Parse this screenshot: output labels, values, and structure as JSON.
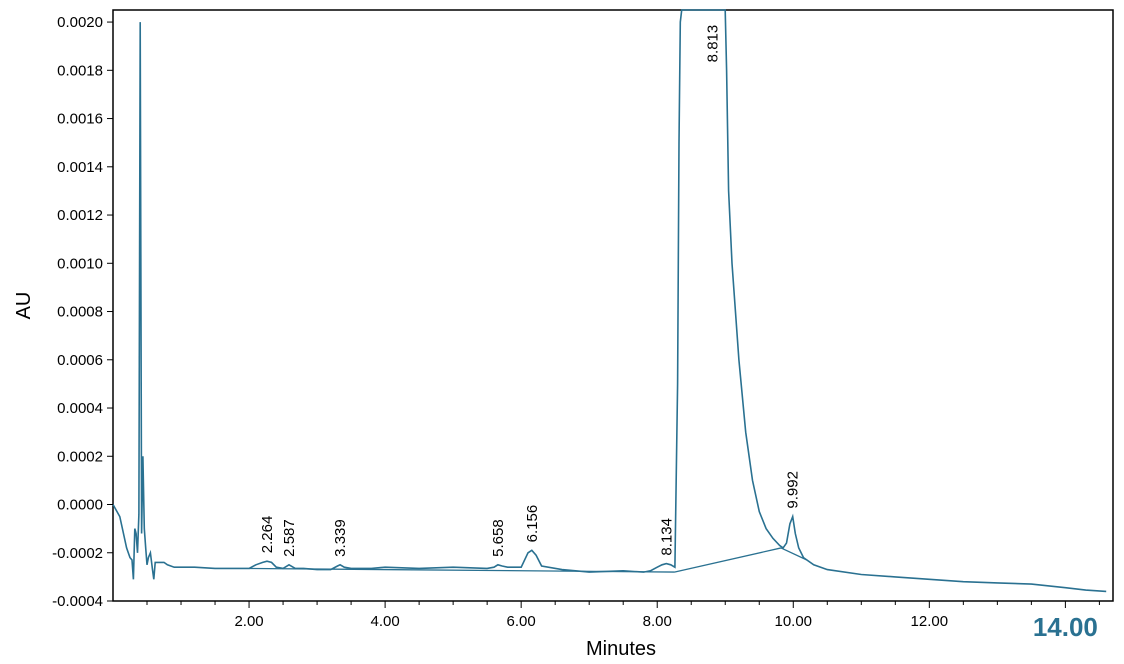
{
  "chart_data": {
    "type": "line",
    "title": "",
    "xlabel": "Minutes",
    "ylabel": "AU",
    "xlim": [
      0.0,
      14.7
    ],
    "ylim": [
      -0.0004,
      0.00205
    ],
    "x_ticks": [
      2.0,
      4.0,
      6.0,
      8.0,
      10.0,
      12.0
    ],
    "x_tick_labels": [
      "2.00",
      "4.00",
      "6.00",
      "8.00",
      "10.00",
      "12.00"
    ],
    "x_max_label": "14.00",
    "y_ticks": [
      -0.0004,
      -0.0002,
      0.0,
      0.0002,
      0.0004,
      0.0006,
      0.0008,
      0.001,
      0.0012,
      0.0014,
      0.0016,
      0.0018,
      0.002
    ],
    "y_tick_labels": [
      "-0.0004",
      "-0.0002",
      "0.0000",
      "0.0002",
      "0.0004",
      "0.0006",
      "0.0008",
      "0.0010",
      "0.0012",
      "0.0014",
      "0.0016",
      "0.0018",
      "0.0020"
    ],
    "grid": false,
    "line_color": "#2a7191",
    "series": [
      {
        "x": [
          0.0,
          0.1,
          0.2,
          0.25,
          0.28,
          0.3,
          0.32,
          0.34,
          0.36,
          0.38,
          0.4,
          0.42,
          0.44,
          0.46,
          0.48,
          0.5,
          0.52,
          0.55,
          0.58,
          0.6,
          0.62,
          0.65,
          0.7,
          0.75,
          0.8,
          0.9,
          1.0,
          1.2,
          1.5,
          1.8,
          2.0,
          2.1,
          2.2,
          2.264,
          2.33,
          2.4,
          2.5,
          2.587,
          2.68,
          2.8,
          3.0,
          3.2,
          3.3,
          3.339,
          3.4,
          3.5,
          3.8,
          4.0,
          4.5,
          5.0,
          5.5,
          5.6,
          5.658,
          5.72,
          5.8,
          6.0,
          6.1,
          6.156,
          6.22,
          6.3,
          6.6,
          7.0,
          7.5,
          7.8,
          7.9,
          8.0,
          8.07,
          8.134,
          8.2,
          8.26,
          8.3,
          8.32,
          8.34,
          8.36,
          8.5,
          8.7,
          8.813,
          8.95,
          9.0,
          9.02,
          9.05,
          9.1,
          9.2,
          9.3,
          9.4,
          9.5,
          9.6,
          9.7,
          9.8,
          9.85,
          9.9,
          9.95,
          9.992,
          10.03,
          10.08,
          10.15,
          10.3,
          10.5,
          11.0,
          11.5,
          12.0,
          12.5,
          13.0,
          13.5,
          14.0,
          14.3,
          14.6
        ],
        "y": [
          0.0,
          -5e-05,
          -0.00018,
          -0.00022,
          -0.00023,
          -0.00031,
          -0.0001,
          -0.00012,
          -0.0002,
          -4e-05,
          0.002,
          -0.00012,
          0.0002,
          -0.0001,
          -0.00018,
          -0.00025,
          -0.00022,
          -0.0002,
          -0.00027,
          -0.00031,
          -0.00024,
          -0.00024,
          -0.00024,
          -0.00024,
          -0.00025,
          -0.00026,
          -0.00026,
          -0.00026,
          -0.000265,
          -0.000265,
          -0.000265,
          -0.00025,
          -0.00024,
          -0.000235,
          -0.00024,
          -0.00026,
          -0.000265,
          -0.00025,
          -0.000265,
          -0.000265,
          -0.00027,
          -0.00027,
          -0.000255,
          -0.00025,
          -0.00026,
          -0.000265,
          -0.000265,
          -0.00026,
          -0.000265,
          -0.00026,
          -0.000265,
          -0.00026,
          -0.00025,
          -0.000255,
          -0.00026,
          -0.00026,
          -0.0002,
          -0.00019,
          -0.00021,
          -0.000255,
          -0.00027,
          -0.00028,
          -0.000275,
          -0.00028,
          -0.000275,
          -0.00026,
          -0.00025,
          -0.000245,
          -0.00025,
          -0.00026,
          0.0005,
          0.0015,
          0.002,
          0.00205,
          0.00205,
          0.00205,
          0.00205,
          0.00205,
          0.00205,
          0.0018,
          0.0013,
          0.001,
          0.0006,
          0.0003,
          0.0001,
          -3e-05,
          -0.0001,
          -0.00014,
          -0.00017,
          -0.00018,
          -0.00016,
          -8e-05,
          -5e-05,
          -0.00012,
          -0.00018,
          -0.00022,
          -0.00025,
          -0.00027,
          -0.00029,
          -0.0003,
          -0.00031,
          -0.00032,
          -0.000325,
          -0.00033,
          -0.000345,
          -0.000355,
          -0.00036
        ]
      }
    ],
    "baselines": [
      {
        "x": [
          2.0,
          8.26
        ],
        "y": [
          -0.000265,
          -0.00028
        ]
      },
      {
        "x": [
          8.26,
          9.82
        ],
        "y": [
          -0.00028,
          -0.00018
        ]
      },
      {
        "x": [
          9.82,
          10.2
        ],
        "y": [
          -0.00018,
          -0.00023
        ]
      }
    ],
    "peak_labels": [
      {
        "x": 2.264,
        "y": -0.000235,
        "text": "2.264"
      },
      {
        "x": 2.587,
        "y": -0.00025,
        "text": "2.587"
      },
      {
        "x": 3.339,
        "y": -0.00025,
        "text": "3.339"
      },
      {
        "x": 5.658,
        "y": -0.00025,
        "text": "5.658"
      },
      {
        "x": 6.156,
        "y": -0.00019,
        "text": "6.156"
      },
      {
        "x": 8.134,
        "y": -0.000245,
        "text": "8.134"
      },
      {
        "x": 8.813,
        "y": 0.0018,
        "text": "8.813"
      },
      {
        "x": 9.992,
        "y": -5e-05,
        "text": "9.992"
      }
    ]
  }
}
